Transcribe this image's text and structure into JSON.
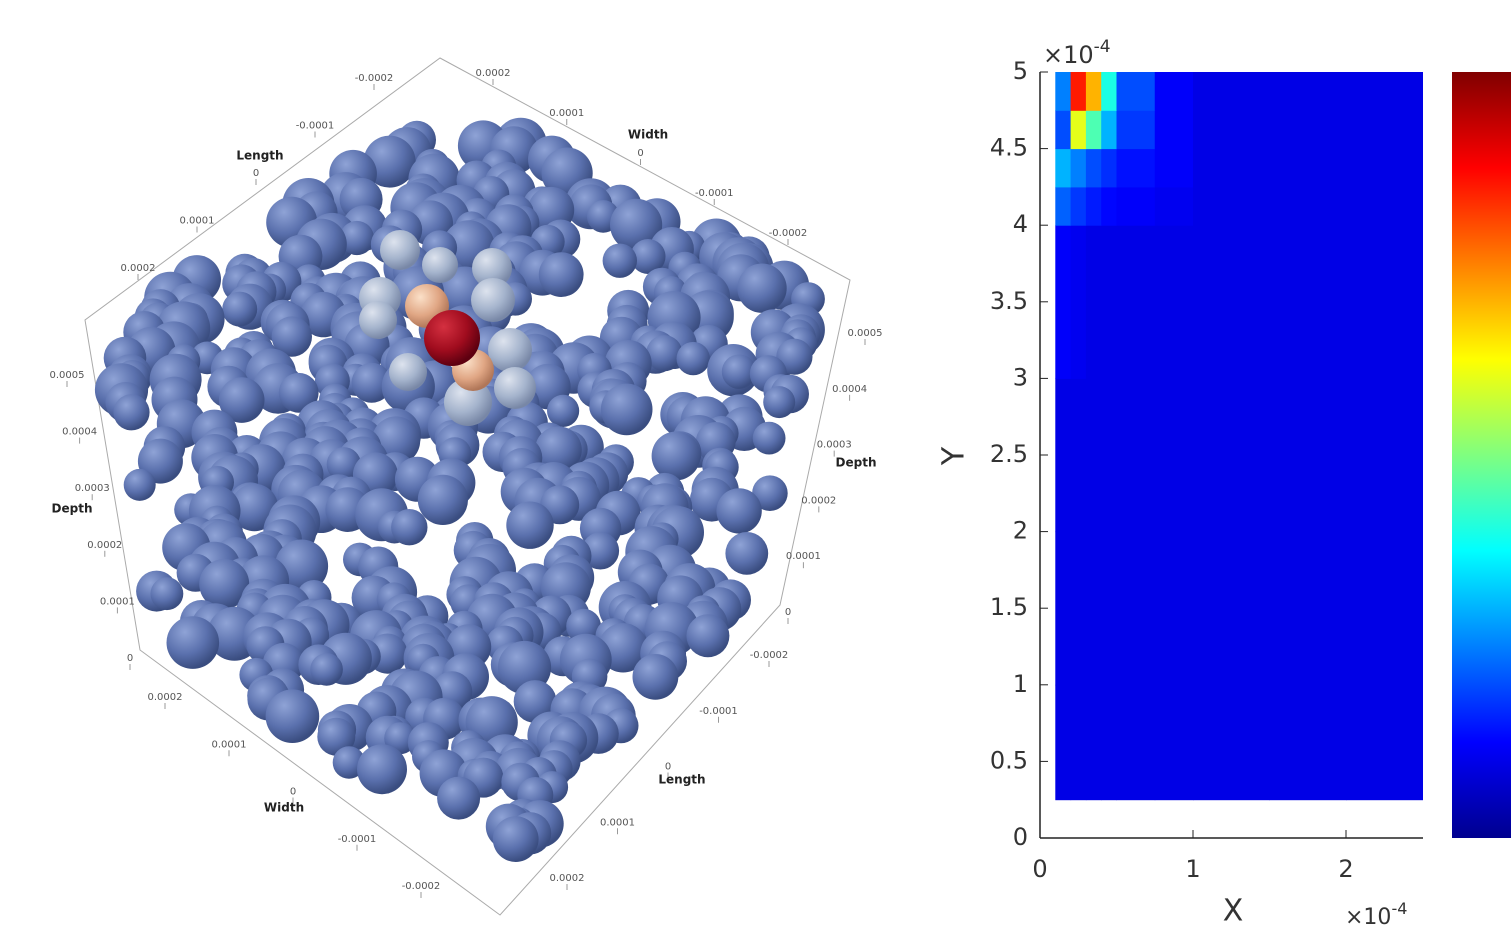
{
  "chart_data": [
    {
      "type": "particles3d",
      "axes": [
        {
          "label": "Length",
          "ticks": [
            -0.0002,
            -0.0001,
            0,
            0.0001,
            0.0002
          ]
        },
        {
          "label": "Width",
          "ticks": [
            0.0002,
            0.0001,
            0,
            -0.0001,
            -0.0002
          ]
        },
        {
          "label": "Depth",
          "ticks": [
            0.0005,
            0.0004,
            0.0003,
            0.0002,
            0.0001,
            0
          ]
        },
        {
          "label": "Depth",
          "ticks": [
            0.0005,
            0.0004,
            0.0003,
            0.0002,
            0.0001,
            0
          ]
        },
        {
          "label": "Width",
          "ticks": [
            0.0002,
            0.0001,
            0,
            -0.0001,
            -0.0002
          ]
        },
        {
          "label": "Length",
          "ticks": [
            -0.0002,
            -0.0001,
            0,
            0.0001,
            0.0002
          ]
        }
      ]
    },
    {
      "type": "heatmap",
      "xlabel": "X",
      "ylabel": "Y",
      "x_multiplier": {
        "base": "×10",
        "exponent": "-4"
      },
      "y_multiplier": {
        "base": "×10",
        "exponent": "-4"
      },
      "xlim": [
        0,
        2.5
      ],
      "ylim": [
        0,
        5
      ],
      "xticks": [
        0,
        1,
        2
      ],
      "yticks": [
        0,
        0.5,
        1,
        1.5,
        2,
        2.5,
        3,
        3.5,
        4,
        4.5,
        5
      ],
      "colormap": "jet",
      "zlim": [
        0,
        1
      ],
      "x_bins": [
        0.1,
        0.2,
        0.3,
        0.4,
        0.5,
        0.75,
        1,
        1.5,
        2,
        2.5
      ],
      "y_bins": [
        0.25,
        1,
        2,
        3,
        4,
        4.25,
        4.5,
        4.75,
        5
      ],
      "z": [
        [
          0.1,
          0.1,
          0.1,
          0.1,
          0.1,
          0.1,
          0.1,
          0.1,
          0.1
        ],
        [
          0.1,
          0.1,
          0.1,
          0.1,
          0.1,
          0.1,
          0.1,
          0.1,
          0.1
        ],
        [
          0.1,
          0.1,
          0.1,
          0.1,
          0.1,
          0.1,
          0.1,
          0.1,
          0.1
        ],
        [
          0.12,
          0.11,
          0.1,
          0.1,
          0.1,
          0.1,
          0.1,
          0.1,
          0.1
        ],
        [
          0.22,
          0.18,
          0.15,
          0.13,
          0.12,
          0.11,
          0.1,
          0.1,
          0.1
        ],
        [
          0.3,
          0.25,
          0.2,
          0.17,
          0.14,
          0.12,
          0.1,
          0.1,
          0.1
        ],
        [
          0.2,
          0.6,
          0.45,
          0.3,
          0.18,
          0.12,
          0.1,
          0.1,
          0.1
        ],
        [
          0.25,
          0.85,
          0.7,
          0.4,
          0.2,
          0.12,
          0.1,
          0.1,
          0.1
        ]
      ]
    }
  ]
}
